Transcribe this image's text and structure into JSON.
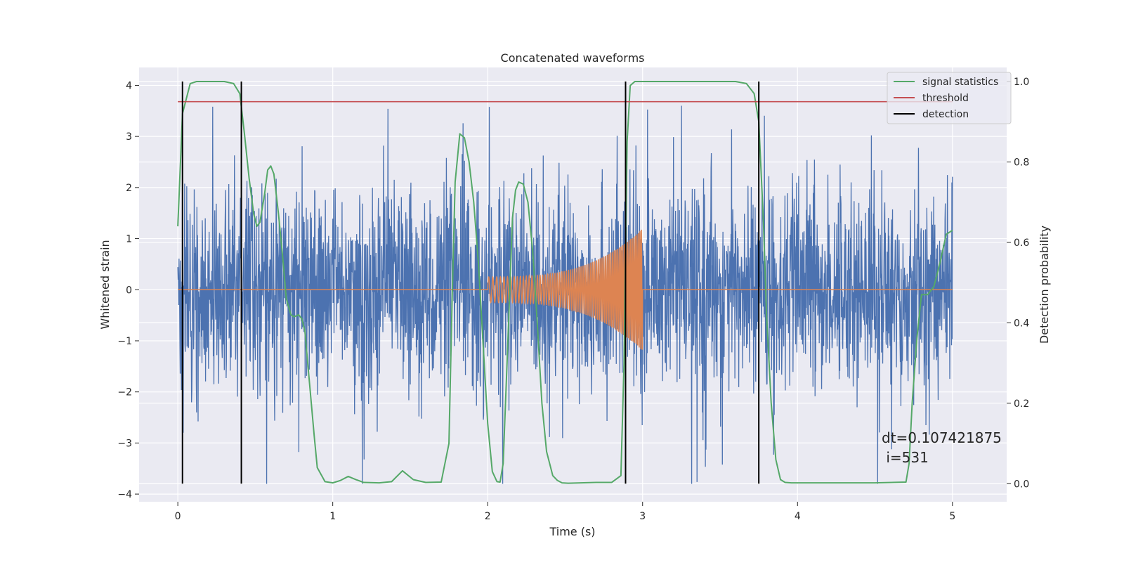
{
  "chart_data": {
    "type": "line",
    "title": "Concatenated waveforms",
    "xlabel": "Time (s)",
    "ylabel_left": "Whitened strain",
    "ylabel_right": "Detection probability",
    "xlim": [
      -0.25,
      5.35
    ],
    "ylim_left": [
      -4.15,
      4.35
    ],
    "ylim_right": [
      -0.045,
      1.035
    ],
    "x_ticks": [
      0,
      1,
      2,
      3,
      4,
      5
    ],
    "y_left_ticks": [
      -4,
      -3,
      -2,
      -1,
      0,
      1,
      2,
      3,
      4
    ],
    "y_right_ticks": [
      0.0,
      0.2,
      0.4,
      0.6,
      0.8,
      1.0
    ],
    "grid": true,
    "legend_position": "top-right",
    "legend": [
      "signal statistics",
      "threshold",
      "detection"
    ],
    "colors": {
      "strain": "#4c72b0",
      "template": "#dd8452",
      "signal_statistics": "#55a868",
      "threshold": "#c44e52",
      "detection": "#000000",
      "background": "#eaeaf2",
      "grid": "#ffffff"
    },
    "series": [
      {
        "name": "signal statistics",
        "axis": "right",
        "x": [
          0.0,
          0.03,
          0.08,
          0.12,
          0.2,
          0.3,
          0.36,
          0.4,
          0.43,
          0.46,
          0.49,
          0.51,
          0.53,
          0.56,
          0.58,
          0.6,
          0.62,
          0.65,
          0.68,
          0.7,
          0.73,
          0.75,
          0.78,
          0.8,
          0.82,
          0.85,
          0.88,
          0.9,
          0.95,
          1.0,
          1.05,
          1.1,
          1.15,
          1.2,
          1.3,
          1.38,
          1.45,
          1.52,
          1.6,
          1.7,
          1.75,
          1.77,
          1.79,
          1.82,
          1.85,
          1.88,
          1.91,
          1.94,
          1.97,
          2.0,
          2.03,
          2.06,
          2.08,
          2.1,
          2.13,
          2.16,
          2.18,
          2.2,
          2.23,
          2.26,
          2.29,
          2.32,
          2.35,
          2.38,
          2.42,
          2.45,
          2.48,
          2.52,
          2.6,
          2.7,
          2.8,
          2.86,
          2.88,
          2.9,
          2.92,
          2.95,
          3.0,
          3.2,
          3.4,
          3.6,
          3.67,
          3.72,
          3.75,
          3.78,
          3.8,
          3.83,
          3.86,
          3.89,
          3.92,
          3.96,
          4.0,
          4.5,
          4.7,
          4.72,
          4.74,
          4.77,
          4.8,
          4.84,
          4.88,
          4.92,
          4.96,
          5.0
        ],
        "values": [
          0.64,
          0.92,
          0.995,
          1.0,
          1.0,
          1.0,
          0.995,
          0.97,
          0.87,
          0.76,
          0.67,
          0.64,
          0.65,
          0.72,
          0.78,
          0.79,
          0.77,
          0.67,
          0.55,
          0.46,
          0.42,
          0.415,
          0.42,
          0.41,
          0.38,
          0.25,
          0.12,
          0.04,
          0.005,
          0.002,
          0.008,
          0.018,
          0.01,
          0.003,
          0.002,
          0.005,
          0.032,
          0.01,
          0.003,
          0.004,
          0.1,
          0.45,
          0.75,
          0.87,
          0.86,
          0.8,
          0.7,
          0.55,
          0.35,
          0.15,
          0.03,
          0.005,
          0.004,
          0.05,
          0.35,
          0.66,
          0.73,
          0.75,
          0.745,
          0.7,
          0.58,
          0.4,
          0.2,
          0.08,
          0.02,
          0.008,
          0.002,
          0.001,
          0.002,
          0.003,
          0.003,
          0.02,
          0.3,
          0.85,
          0.99,
          1.0,
          1.0,
          1.0,
          1.0,
          1.0,
          0.995,
          0.97,
          0.9,
          0.65,
          0.42,
          0.2,
          0.06,
          0.01,
          0.003,
          0.002,
          0.002,
          0.002,
          0.004,
          0.05,
          0.2,
          0.36,
          0.47,
          0.47,
          0.49,
          0.55,
          0.62,
          0.63
        ]
      },
      {
        "name": "threshold",
        "axis": "right",
        "x": [
          0.0,
          5.0
        ],
        "values": [
          0.95,
          0.95
        ]
      },
      {
        "name": "detection",
        "axis": "right",
        "type": "vlines",
        "x": [
          0.03,
          0.41,
          2.89,
          3.75
        ],
        "ymin": 0.0,
        "ymax": 1.0
      },
      {
        "name": "",
        "axis": "left",
        "type": "noise",
        "x_range": [
          0.0,
          5.0
        ],
        "typical_amplitude": 1.0,
        "max_peak": 3.6,
        "min_trough": -3.8
      },
      {
        "name": "",
        "axis": "left",
        "type": "chirp",
        "x_range": [
          2.0,
          3.0
        ],
        "amplitude_start": 0.25,
        "amplitude_end": 1.2,
        "cycles": 70,
        "baseline": 0.0
      }
    ],
    "annotations": [
      "dt=0.107421875",
      " i=531"
    ]
  }
}
